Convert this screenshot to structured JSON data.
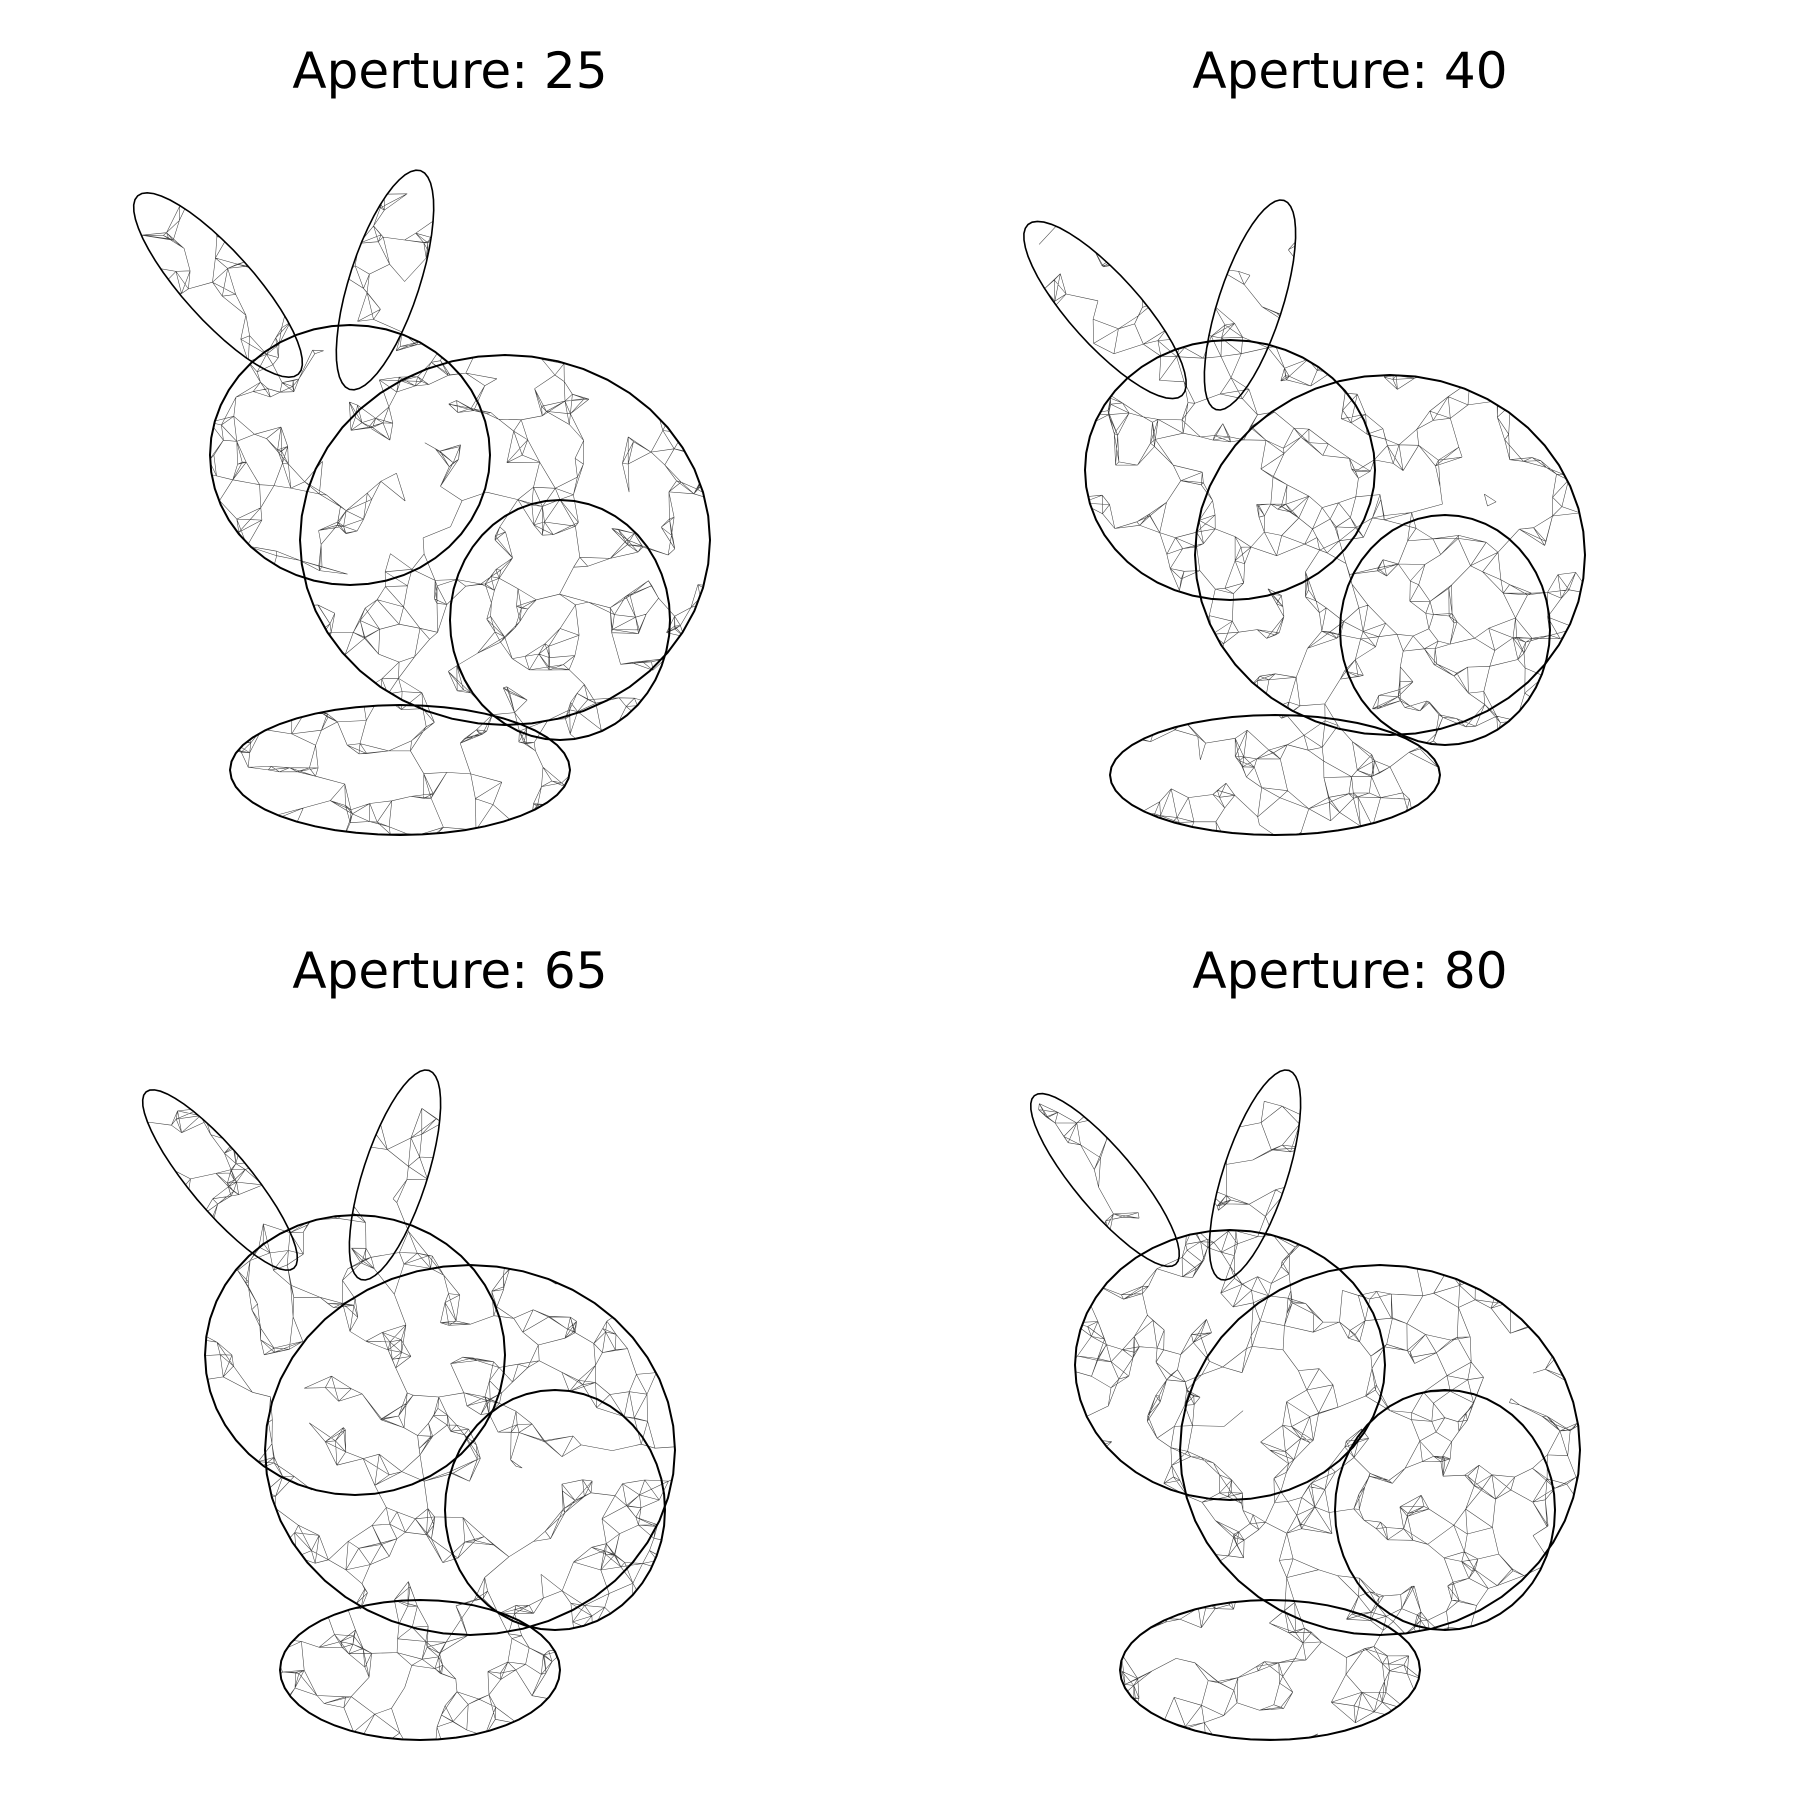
{
  "panels": [
    {
      "title": "Aperture: 25"
    },
    {
      "title": "Aperture: 40"
    },
    {
      "title": "Aperture: 65"
    },
    {
      "title": "Aperture: 80"
    }
  ],
  "mesh_color": "#000000",
  "background_color": "#ffffff"
}
